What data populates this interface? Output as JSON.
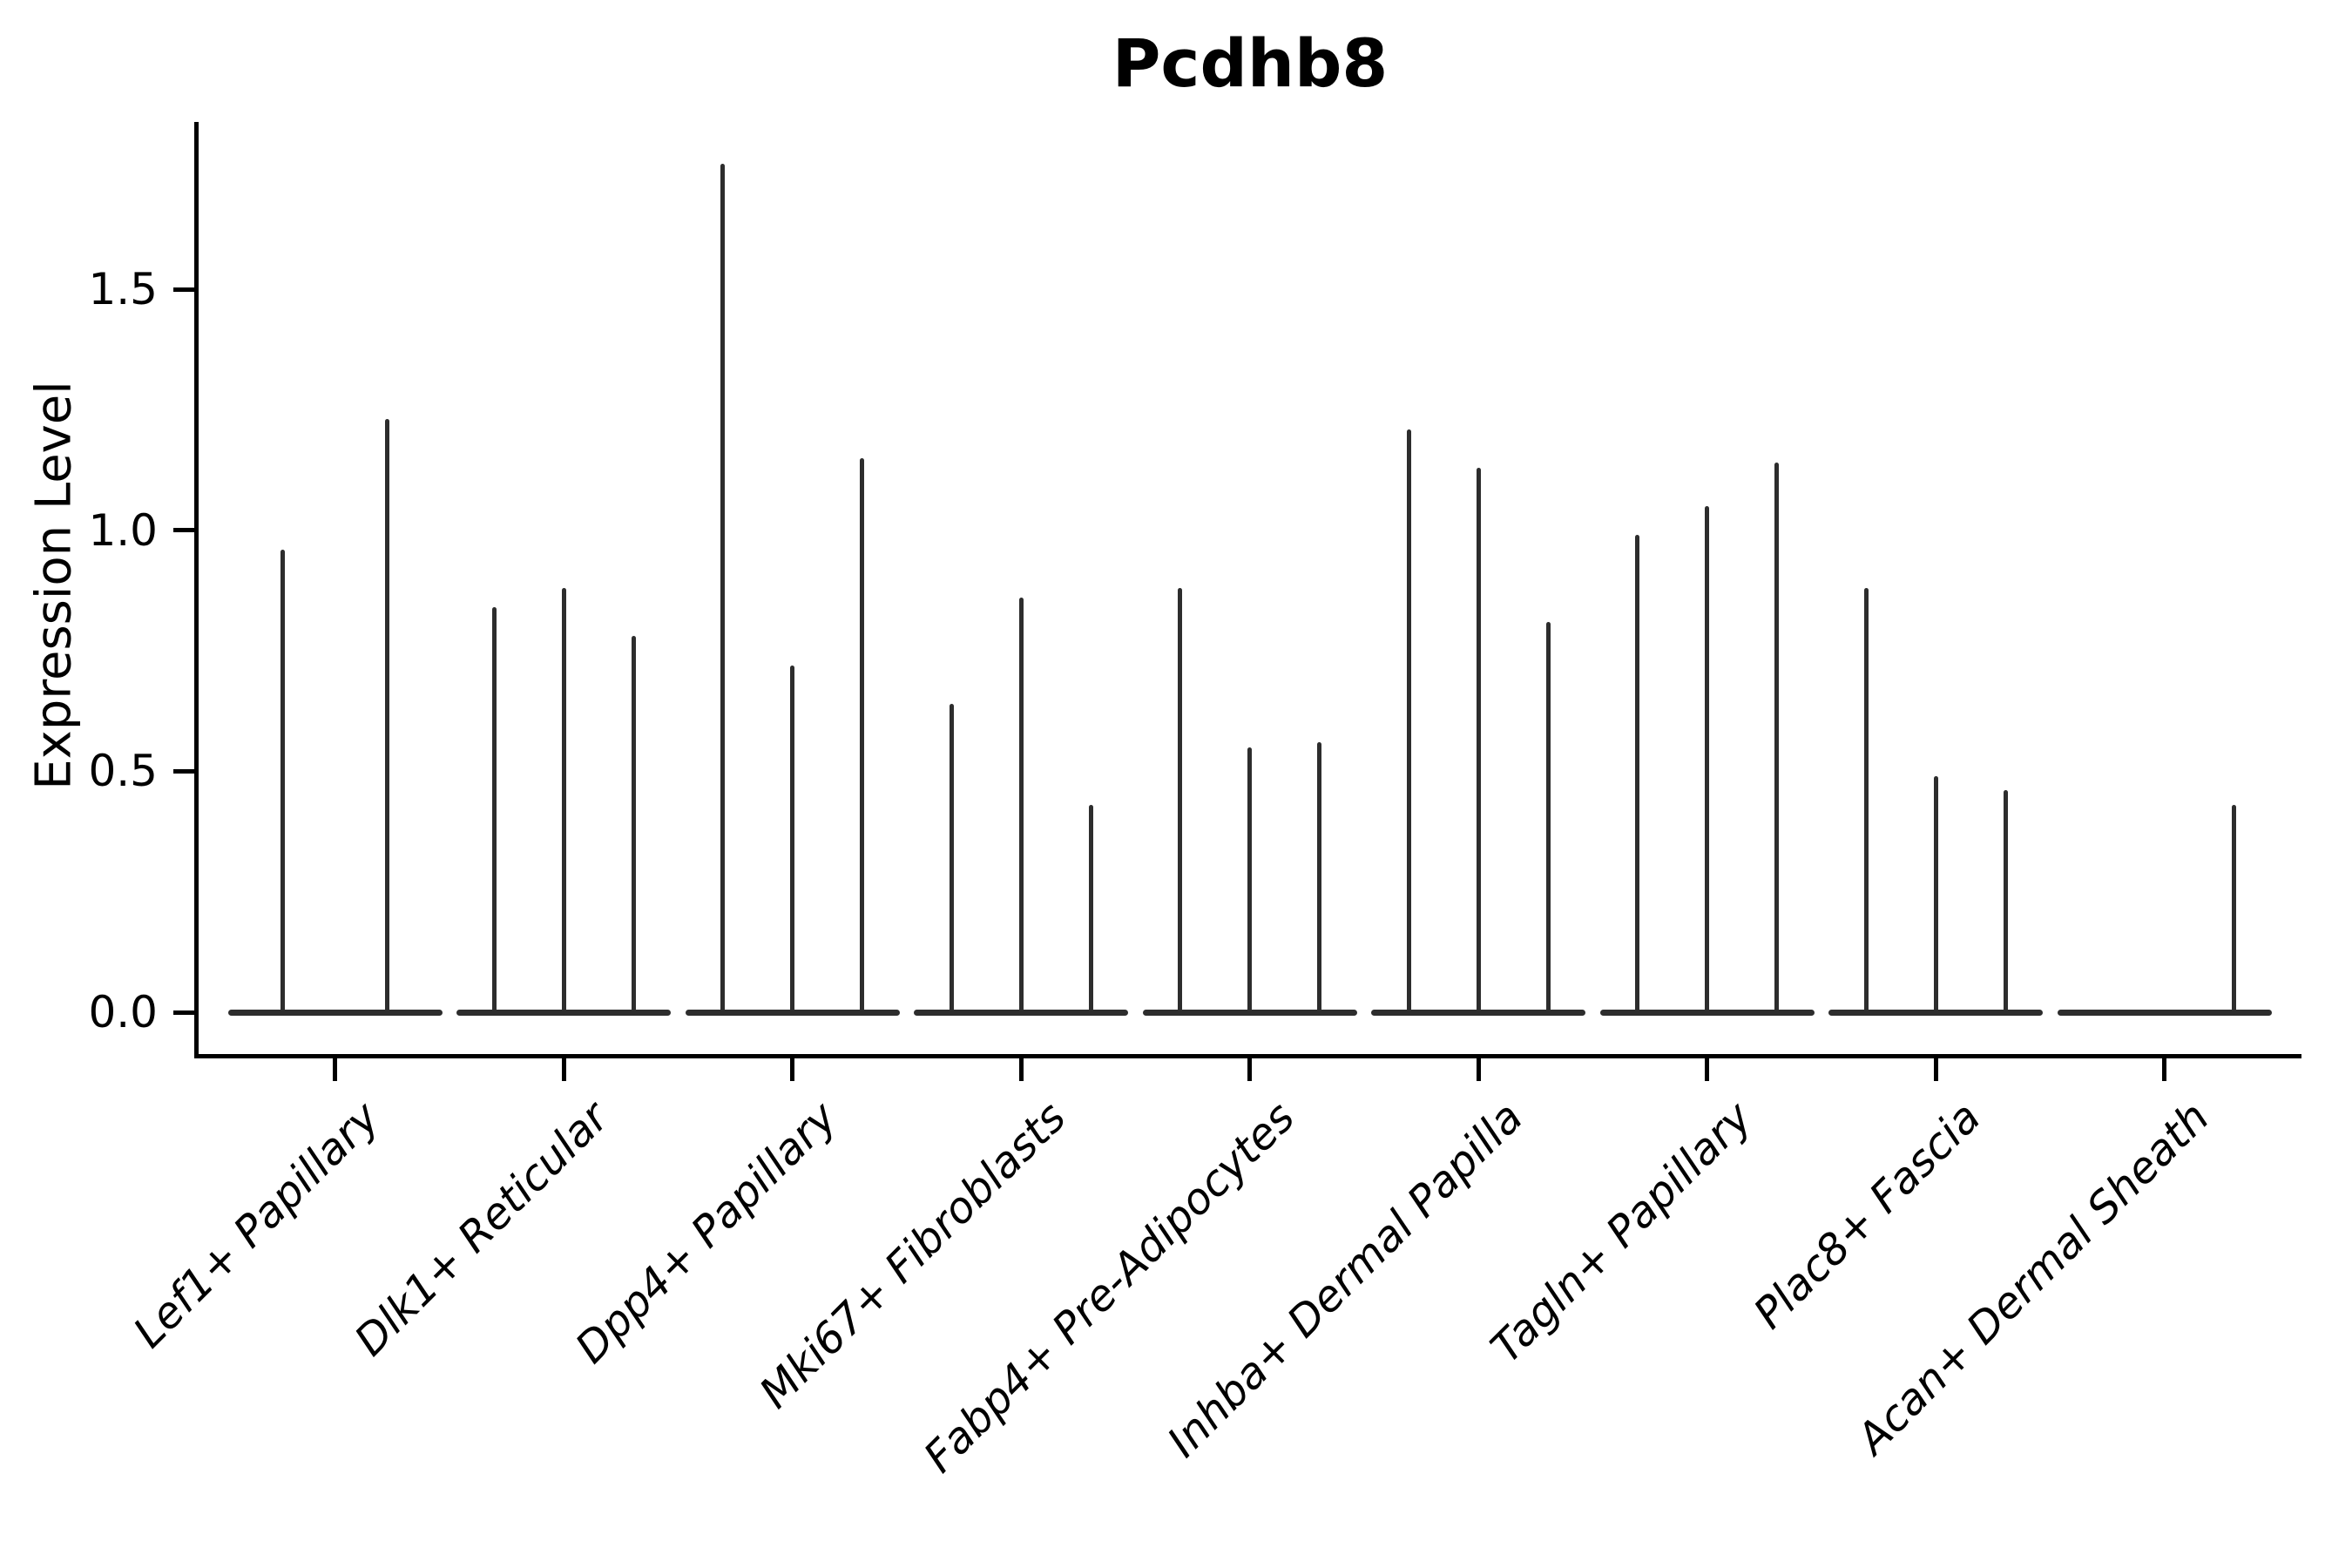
{
  "chart_data": {
    "type": "violin",
    "title": "Pcdhb8",
    "xlabel": "",
    "ylabel": "Expression Level",
    "ylim": [
      0,
      1.86
    ],
    "yticks": [
      0.0,
      0.5,
      1.0,
      1.5
    ],
    "ytick_labels": [
      "0.0",
      "0.5",
      "1.0",
      "1.5"
    ],
    "grid": false,
    "legend": null,
    "line_color": "#2d2d2d",
    "axis_color": "#000000",
    "note": "Single-cell violin plot; expression collapsed at 0 with thin spikes up to the max expression per sub-violin. Category 1 has 2 sub-violins, all others have 3; zeros are flat violins.",
    "categories": [
      "Lef1+ Papillary",
      "Dlk1+ Reticular",
      "Dpp4+ Papillary",
      "Mki67+ Fibroblasts",
      "Fabp4+ Pre-Adipocytes",
      "Inhba+ Dermal Papilla",
      "Tagln+ Papillary",
      "Plac8+ Fascia",
      "Acan+ Dermal Sheath"
    ],
    "groups": [
      {
        "category": "Lef1+ Papillary",
        "spike_heights": [
          0.96,
          1.23
        ]
      },
      {
        "category": "Dlk1+ Reticular",
        "spike_heights": [
          0.84,
          0.88,
          0.78
        ]
      },
      {
        "category": "Dpp4+ Papillary",
        "spike_heights": [
          1.76,
          0.72,
          1.15
        ]
      },
      {
        "category": "Mki67+ Fibroblasts",
        "spike_heights": [
          0.64,
          0.86,
          0.43
        ]
      },
      {
        "category": "Fabp4+ Pre-Adipocytes",
        "spike_heights": [
          0.88,
          0.55,
          0.56
        ]
      },
      {
        "category": "Inhba+ Dermal Papilla",
        "spike_heights": [
          1.21,
          1.13,
          0.81
        ]
      },
      {
        "category": "Tagln+ Papillary",
        "spike_heights": [
          0.99,
          1.05,
          1.14
        ]
      },
      {
        "category": "Plac8+ Fascia",
        "spike_heights": [
          0.88,
          0.49,
          0.46
        ]
      },
      {
        "category": "Acan+ Dermal Sheath",
        "spike_heights": [
          0.0,
          0.0,
          0.43
        ]
      }
    ]
  }
}
